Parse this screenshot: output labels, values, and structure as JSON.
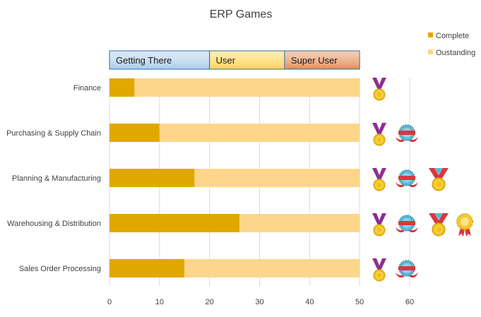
{
  "chart_data": {
    "type": "bar",
    "orientation": "horizontal",
    "stacked": true,
    "title": "ERP Games",
    "categories": [
      "Finance",
      "Purchasing & Supply Chain",
      "Planning & Manufacturing",
      "Warehousing & Distribution",
      "Sales Order Processing"
    ],
    "series": [
      {
        "name": "Complete",
        "values": [
          5,
          10,
          17,
          26,
          15
        ],
        "color": "#e0a800"
      },
      {
        "name": "Oustanding",
        "values": [
          45,
          40,
          33,
          24,
          35
        ],
        "color": "#fdd68c"
      }
    ],
    "xlim": [
      0,
      60
    ],
    "xticks": [
      "0",
      "10",
      "20",
      "30",
      "40",
      "50",
      "60"
    ],
    "legend": "top-right",
    "grid": "vertical",
    "level_bands": [
      {
        "label": "Getting There",
        "start": 0,
        "end": 20,
        "color": "#a9cbe9"
      },
      {
        "label": "User",
        "start": 20,
        "end": 35,
        "color": "#ffd24a"
      },
      {
        "label": "Super User",
        "start": 35,
        "end": 50,
        "color": "#e28a50"
      }
    ],
    "badges": [
      {
        "category": "Finance",
        "icons": [
          "medal-icon"
        ]
      },
      {
        "category": "Purchasing & Supply Chain",
        "icons": [
          "medal-icon",
          "rosette-icon"
        ]
      },
      {
        "category": "Planning & Manufacturing",
        "icons": [
          "medal-icon",
          "rosette-icon",
          "ribbon-medal-icon"
        ]
      },
      {
        "category": "Warehousing & Distribution",
        "icons": [
          "medal-icon",
          "rosette-icon",
          "ribbon-medal-icon",
          "gold-rosette-icon"
        ]
      },
      {
        "category": "Sales Order Processing",
        "icons": [
          "medal-icon",
          "rosette-icon"
        ]
      }
    ]
  }
}
